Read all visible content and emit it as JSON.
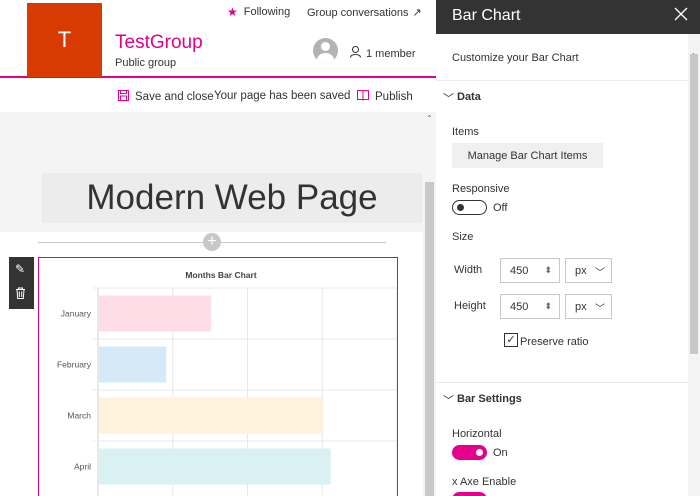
{
  "topbar": {
    "following": "Following",
    "group_conversations": "Group conversations"
  },
  "group": {
    "logo_letter": "T",
    "name": "TestGroup",
    "type": "Public group",
    "members": "1 member"
  },
  "commandbar": {
    "save": "Save and close",
    "saved_message": "Your page has been saved",
    "publish": "Publish"
  },
  "page": {
    "title": "Modern Web Page"
  },
  "chart_data": {
    "type": "bar",
    "orientation": "horizontal",
    "title": "Months Bar Chart",
    "categories": [
      "January",
      "February",
      "March",
      "April"
    ],
    "values": [
      15,
      9,
      30,
      31
    ],
    "xlim": [
      0,
      40
    ],
    "grid": true,
    "colors": [
      "#ffdde6",
      "#d6e9f8",
      "#fff2dc",
      "#d9f1f2"
    ]
  },
  "panel": {
    "title": "Bar Chart",
    "subtitle": "Customize your Bar Chart",
    "data_section": "Data",
    "items_label": "Items",
    "manage_button": "Manage Bar Chart Items",
    "responsive_label": "Responsive",
    "responsive_state": "Off",
    "size_label": "Size",
    "width_label": "Width",
    "width_value": "450",
    "width_unit": "px",
    "height_label": "Height",
    "height_value": "450",
    "height_unit": "px",
    "preserve_ratio": "Preserve ratio",
    "bar_settings_section": "Bar Settings",
    "horizontal_label": "Horizontal",
    "horizontal_state": "On",
    "x_axe_label": "x Axe Enable"
  },
  "colors": {
    "accent": "#e3008c",
    "logo": "#d83b01",
    "panel_header": "#333333"
  },
  "icons": [
    "star-icon",
    "arrow-up-right-icon",
    "person-icon",
    "save-icon",
    "book-icon",
    "plus-icon",
    "pencil-icon",
    "trash-icon",
    "close-icon",
    "chevron-down-icon"
  ]
}
